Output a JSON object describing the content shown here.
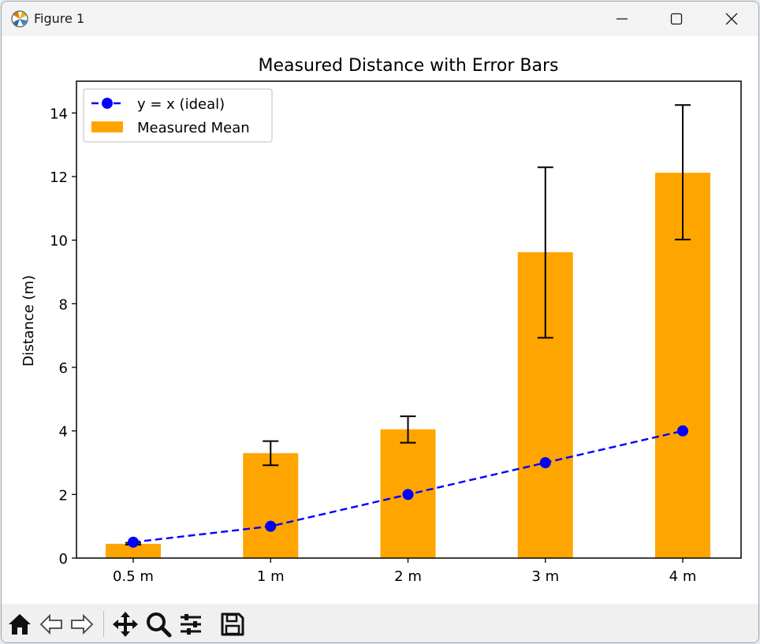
{
  "window": {
    "title": "Figure 1",
    "controls": [
      "minimize-icon",
      "maximize-icon",
      "close-icon"
    ]
  },
  "toolbar": {
    "tools": [
      {
        "name": "home-icon",
        "label": "Home"
      },
      {
        "name": "back-icon",
        "label": "Back"
      },
      {
        "name": "forward-icon",
        "label": "Forward"
      },
      {
        "name": "pan-icon",
        "label": "Pan"
      },
      {
        "name": "zoom-icon",
        "label": "Zoom"
      },
      {
        "name": "configure-subplots-icon",
        "label": "Configure subplots"
      },
      {
        "name": "save-icon",
        "label": "Save"
      }
    ]
  },
  "colors": {
    "bar": "#ffa500",
    "line": "#0000ff",
    "error": "#000000"
  },
  "chart_data": {
    "type": "bar",
    "title": "Measured Distance with Error Bars",
    "xlabel": "",
    "ylabel": "Distance (m)",
    "categories": [
      "0.5 m",
      "1 m",
      "2 m",
      "3 m",
      "4 m"
    ],
    "ylim": [
      0,
      15
    ],
    "yticks": [
      0,
      2,
      4,
      6,
      8,
      10,
      12,
      14
    ],
    "ytick_labels": [
      "0",
      "2",
      "4",
      "6",
      "8",
      "10",
      "12",
      "14"
    ],
    "series": [
      {
        "name": "Measured Mean",
        "type": "bar",
        "values": [
          0.45,
          3.3,
          4.05,
          9.62,
          12.12
        ],
        "error_low": [
          0.42,
          2.92,
          3.63,
          6.93,
          10.02
        ],
        "error_high": [
          0.48,
          3.68,
          4.46,
          12.29,
          14.25
        ]
      },
      {
        "name": "y = x (ideal)",
        "type": "line",
        "style": "dashed",
        "marker": "circle",
        "values": [
          0.5,
          1,
          2,
          3,
          4
        ]
      }
    ],
    "legend": {
      "placement": "upper left",
      "entries": [
        "y = x (ideal)",
        "Measured Mean"
      ]
    },
    "grid": false
  }
}
